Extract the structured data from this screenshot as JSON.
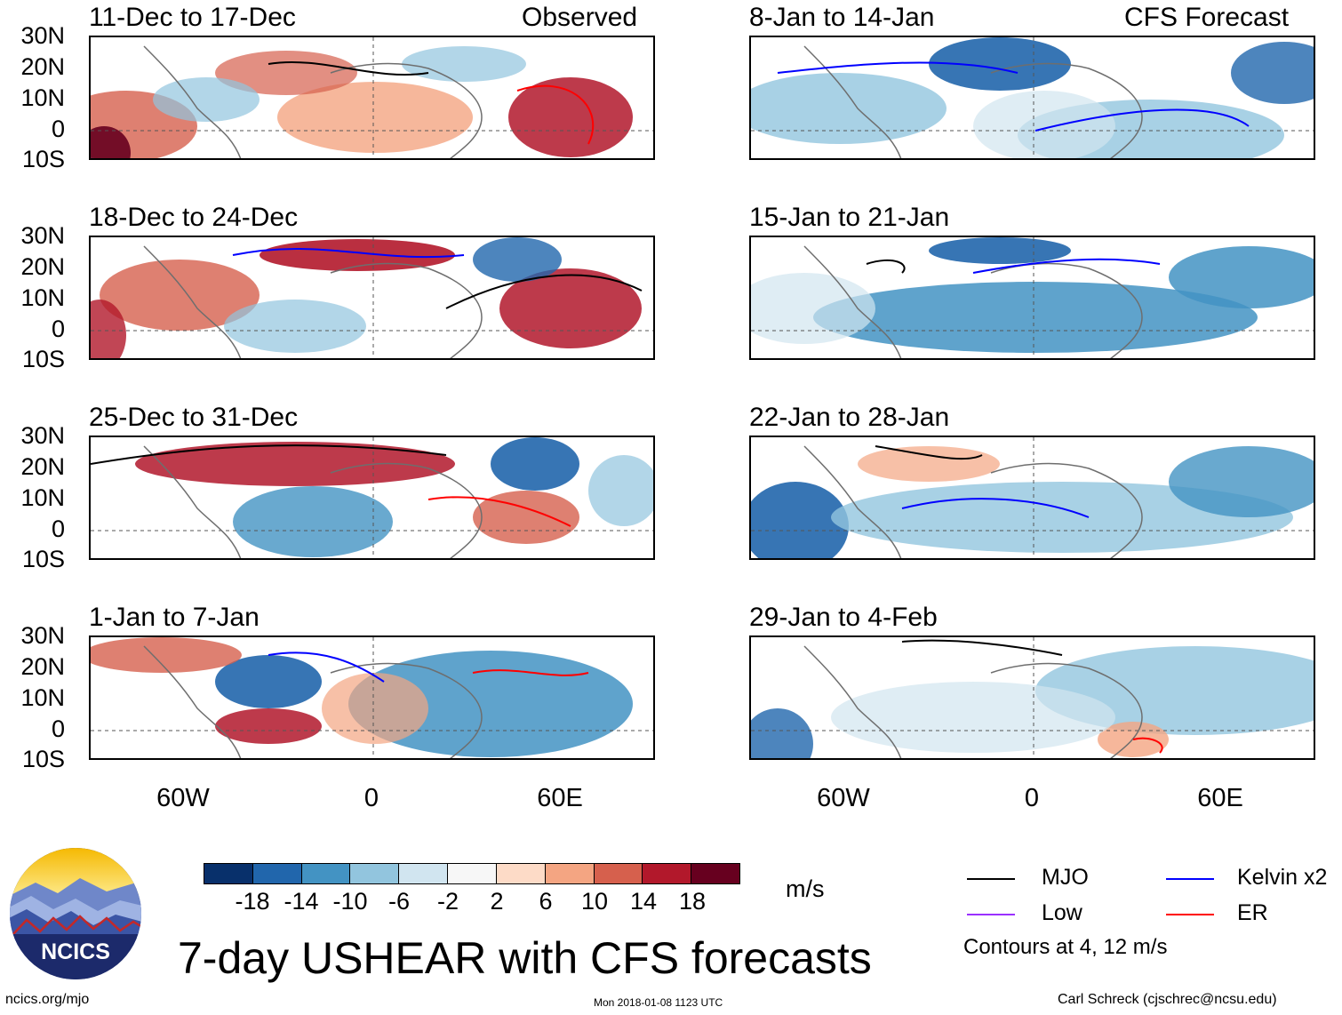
{
  "panels": [
    {
      "id": "p0",
      "title": "11-Dec to 17-Dec",
      "tag": "Observed"
    },
    {
      "id": "p1",
      "title": "8-Jan to 14-Jan",
      "tag": "CFS Forecast"
    },
    {
      "id": "p2",
      "title": "18-Dec to 24-Dec",
      "tag": ""
    },
    {
      "id": "p3",
      "title": "15-Jan to 21-Jan",
      "tag": ""
    },
    {
      "id": "p4",
      "title": "25-Dec to 31-Dec",
      "tag": ""
    },
    {
      "id": "p5",
      "title": "22-Jan to 28-Jan",
      "tag": ""
    },
    {
      "id": "p6",
      "title": "1-Jan to 7-Jan",
      "tag": ""
    },
    {
      "id": "p7",
      "title": "29-Jan to 4-Feb",
      "tag": ""
    }
  ],
  "lat_labels": [
    "30N",
    "20N",
    "10N",
    "0",
    "10S"
  ],
  "lon_labels": [
    "60W",
    "0",
    "60E"
  ],
  "colorbar": {
    "labels": [
      "-18",
      "-14",
      "-10",
      "-6",
      "-2",
      "2",
      "6",
      "10",
      "14",
      "18"
    ],
    "colors": [
      "#08306b",
      "#2166ac",
      "#4393c3",
      "#92c5de",
      "#d1e5f0",
      "#f7f7f7",
      "#fddbc7",
      "#f4a582",
      "#d6604d",
      "#b2182b",
      "#67001f"
    ],
    "units": "m/s"
  },
  "legend": {
    "mjo": "MJO",
    "low": "Low",
    "kelvin": "Kelvin x2",
    "er": "ER",
    "contours": "Contours at 4, 12 m/s",
    "colors": {
      "mjo": "#000000",
      "low": "#9b30ff",
      "kelvin": "#0000ff",
      "er": "#ff0000"
    }
  },
  "logo_text": "NCICS",
  "main_title": "7-day USHEAR with CFS forecasts",
  "footer": {
    "url": "ncics.org/mjo",
    "timestamp": "Mon 2018-01-08 1123 UTC",
    "credit": "Carl Schreck (cjschrec@ncsu.edu)"
  }
}
